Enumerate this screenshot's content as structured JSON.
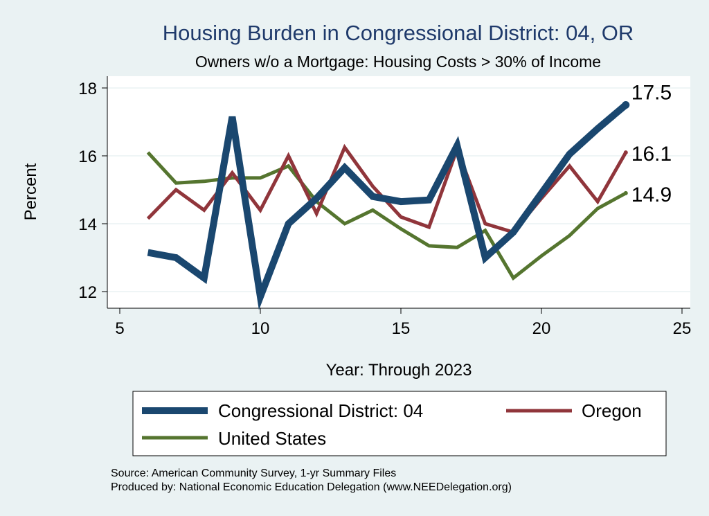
{
  "chart_data": {
    "type": "line",
    "title": "Housing Burden in Congressional District:  04, OR",
    "subtitle": "Owners w/o a Mortgage: Housing Costs > 30% of Income",
    "xlabel": "Year: Through 2023",
    "ylabel": "Percent",
    "xlim": [
      5,
      25
    ],
    "ylim": [
      11.5,
      18.3
    ],
    "xticks": [
      5,
      10,
      15,
      20,
      25
    ],
    "yticks": [
      12,
      14,
      16,
      18
    ],
    "grid": true,
    "legend_position": "bottom",
    "series": [
      {
        "name": "Congressional District:  04",
        "color": "#1a476f",
        "x": [
          6,
          7,
          8,
          9,
          10,
          11,
          12,
          13,
          14,
          15,
          16,
          17,
          18,
          19,
          20,
          21,
          22,
          23
        ],
        "values": [
          13.15,
          13.0,
          12.4,
          17.15,
          11.85,
          14.0,
          14.75,
          15.65,
          14.8,
          14.65,
          14.7,
          16.3,
          13.0,
          13.75,
          14.9,
          16.05,
          16.8,
          17.5
        ],
        "end_label": "17.5"
      },
      {
        "name": "Oregon",
        "color": "#90353b",
        "x": [
          6,
          7,
          8,
          9,
          10,
          11,
          12,
          13,
          14,
          15,
          16,
          17,
          18,
          19,
          20,
          21,
          22,
          23
        ],
        "values": [
          14.15,
          15.0,
          14.4,
          15.5,
          14.4,
          16.0,
          14.3,
          16.25,
          15.1,
          14.2,
          13.9,
          16.2,
          14.0,
          13.75,
          14.75,
          15.7,
          14.65,
          16.1
        ],
        "end_label": "16.1"
      },
      {
        "name": "United States",
        "color": "#55752f",
        "x": [
          6,
          7,
          8,
          9,
          10,
          11,
          12,
          13,
          14,
          15,
          16,
          17,
          18,
          19,
          20,
          21,
          22,
          23
        ],
        "values": [
          16.1,
          15.2,
          15.25,
          15.35,
          15.35,
          15.7,
          14.65,
          14.0,
          14.4,
          13.85,
          13.35,
          13.3,
          13.8,
          12.4,
          13.05,
          13.65,
          14.45,
          14.9
        ],
        "end_label": "14.9"
      }
    ]
  },
  "source_line1": "Source: American Community Survey, 1-yr Summary Files",
  "source_line2": "Produced by: National Economic Education Delegation (www.NEEDelegation.org)"
}
